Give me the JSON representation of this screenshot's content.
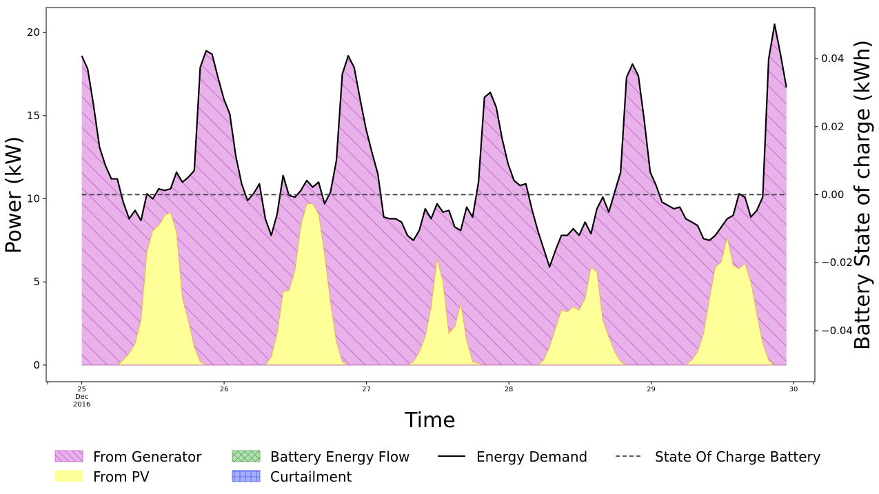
{
  "chart_data": {
    "type": "area",
    "xlabel": "Time",
    "ylabel": "Power (kW)",
    "y2label": "Battery State of charge (kWh)",
    "x_start_day": 25,
    "x_end_day": 29.95,
    "xlim": [
      24.75,
      30.15
    ],
    "ylim": [
      -1,
      21.5
    ],
    "y2lim": [
      -0.055,
      0.055
    ],
    "yticks": [
      0,
      5,
      10,
      15,
      20
    ],
    "y2ticks": [
      -0.04,
      -0.02,
      0.0,
      0.02,
      0.04
    ],
    "y2tick_labels": [
      "−0.04",
      "−0.02",
      "0.00",
      "0.02",
      "0.04"
    ],
    "xticks": [
      {
        "value": 25,
        "lines": [
          "25",
          "Dec",
          "2016"
        ]
      },
      {
        "value": 26,
        "lines": [
          "26"
        ]
      },
      {
        "value": 27,
        "lines": [
          "27"
        ]
      },
      {
        "value": 28,
        "lines": [
          "28"
        ]
      },
      {
        "value": 29,
        "lines": [
          "29"
        ]
      },
      {
        "value": 30,
        "lines": [
          "30"
        ]
      }
    ],
    "grid": false,
    "legend_position": "bottom",
    "colors": {
      "generator_fill": "#e9b1e9",
      "generator_hatch": "#bf5fcf",
      "pv_fill": "#ffff99",
      "pv_edge": "#e8b35a",
      "battery_fill": "#b2dfb2",
      "battery_hatch": "#5aa85a",
      "curtailment_fill": "#a7b0ff",
      "curtailment_hatch": "#4a55e6",
      "demand_line": "#000000",
      "soc_line": "#444444"
    },
    "series": [
      {
        "name": "Energy Demand",
        "kind": "line",
        "values": [
          18.6,
          17.8,
          15.6,
          13.1,
          12.0,
          11.2,
          11.2,
          9.8,
          8.8,
          9.3,
          8.7,
          10.3,
          10.0,
          10.6,
          10.5,
          10.6,
          11.6,
          11.0,
          11.3,
          11.7,
          17.9,
          18.9,
          18.7,
          17.3,
          16.0,
          15.1,
          12.6,
          10.9,
          9.9,
          10.3,
          10.9,
          8.8,
          7.8,
          9.1,
          11.4,
          10.2,
          10.1,
          10.5,
          11.1,
          10.7,
          11.0,
          9.7,
          10.4,
          12.3,
          17.5,
          18.6,
          17.9,
          16.0,
          14.2,
          12.8,
          11.5,
          8.9,
          8.8,
          8.8,
          8.6,
          7.8,
          7.5,
          8.1,
          9.4,
          8.8,
          9.7,
          9.2,
          9.3,
          8.3,
          8.1,
          9.5,
          8.9,
          11.0,
          16.1,
          16.4,
          15.5,
          13.6,
          12.1,
          11.1,
          10.8,
          10.9,
          9.4,
          8.1,
          7.0,
          5.9,
          6.9,
          7.8,
          7.8,
          8.2,
          7.8,
          8.6,
          7.9,
          9.4,
          10.1,
          9.2,
          10.4,
          11.6,
          17.3,
          18.1,
          17.4,
          14.7,
          11.6,
          10.8,
          9.8,
          9.6,
          9.4,
          9.5,
          8.8,
          8.6,
          8.4,
          7.6,
          7.5,
          7.8,
          8.3,
          8.8,
          9.0,
          10.3,
          10.1,
          8.9,
          9.3,
          10.1,
          18.4,
          20.5,
          18.7,
          16.7
        ]
      },
      {
        "name": "From PV",
        "kind": "area",
        "values": [
          0,
          0,
          0,
          0,
          0,
          0,
          0,
          0.3,
          0.7,
          1.3,
          2.7,
          6.8,
          8.1,
          8.4,
          9.0,
          9.2,
          8.0,
          4.0,
          2.7,
          1.1,
          0.2,
          0,
          0,
          0,
          0,
          0,
          0,
          0,
          0,
          0,
          0,
          0,
          0.5,
          1.9,
          4.4,
          4.5,
          5.7,
          8.4,
          9.7,
          9.7,
          9.1,
          6.7,
          3.8,
          1.4,
          0.2,
          0,
          0,
          0,
          0,
          0,
          0,
          0,
          0,
          0,
          0,
          0,
          0.2,
          0.8,
          1.7,
          3.5,
          6.4,
          5.0,
          1.9,
          2.3,
          3.7,
          1.5,
          0.2,
          0.1,
          0,
          0,
          0,
          0,
          0,
          0,
          0,
          0,
          0,
          0,
          0.3,
          1.1,
          2.2,
          3.3,
          3.2,
          3.5,
          3.3,
          4.0,
          5.9,
          5.6,
          2.7,
          1.7,
          0.8,
          0.2,
          0,
          0,
          0,
          0,
          0,
          0,
          0,
          0,
          0,
          0,
          0,
          0.3,
          0.8,
          1.9,
          4.0,
          5.9,
          6.2,
          7.7,
          6.0,
          5.8,
          6.1,
          5.0,
          3.1,
          1.3,
          0.3,
          0,
          0,
          0
        ]
      },
      {
        "name": "From Generator",
        "kind": "area",
        "stack_top": "Energy Demand"
      },
      {
        "name": "State Of Charge Battery",
        "kind": "line",
        "constant": 0.0
      },
      {
        "name": "Battery Energy Flow",
        "kind": "area",
        "values": []
      },
      {
        "name": "Curtailment",
        "kind": "area",
        "values": []
      }
    ],
    "legend": [
      {
        "label": "From Generator",
        "swatch": "generator"
      },
      {
        "label": "From PV",
        "swatch": "pv"
      },
      {
        "label": "Battery Energy Flow",
        "swatch": "battery"
      },
      {
        "label": "Curtailment",
        "swatch": "curtailment"
      },
      {
        "label": "Energy Demand",
        "swatch": "demand_line"
      },
      {
        "label": "State Of Charge Battery",
        "swatch": "soc_line"
      }
    ]
  }
}
